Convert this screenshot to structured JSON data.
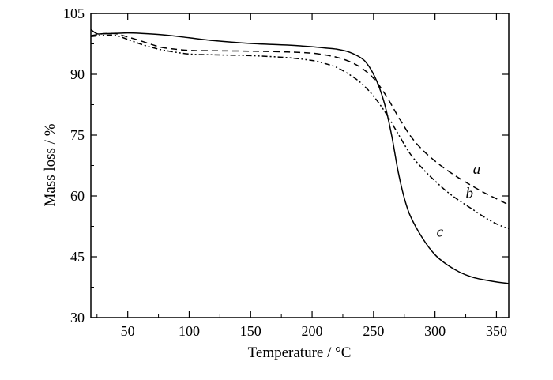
{
  "chart_data": {
    "type": "line",
    "title": "",
    "xlabel": "Temperature / °C",
    "ylabel": "Mass loss / %",
    "xlim": [
      20,
      360
    ],
    "ylim": [
      30,
      105
    ],
    "x_ticks": [
      50,
      100,
      150,
      200,
      250,
      300,
      350
    ],
    "y_ticks": [
      30,
      45,
      60,
      75,
      90,
      105
    ],
    "x_tick_labels": [
      "50",
      "100",
      "150",
      "200",
      "250",
      "300",
      "350"
    ],
    "y_tick_labels": [
      "30",
      "45",
      "60",
      "75",
      "90",
      "105"
    ],
    "grid": false,
    "legend": "none",
    "series": [
      {
        "name": "a",
        "style": "dashed",
        "x": [
          20,
          30,
          40,
          50,
          60,
          70,
          80,
          100,
          120,
          150,
          180,
          200,
          210,
          220,
          230,
          240,
          250,
          260,
          270,
          280,
          290,
          300,
          310,
          320,
          330,
          340,
          350,
          360
        ],
        "y": [
          99.5,
          100.0,
          100.0,
          99.2,
          98.3,
          97.3,
          96.5,
          95.9,
          95.8,
          95.7,
          95.5,
          95.2,
          94.8,
          94.2,
          93.2,
          91.6,
          89.0,
          84.8,
          79.6,
          74.8,
          71.3,
          68.6,
          66.3,
          64.3,
          62.5,
          60.8,
          59.3,
          57.8
        ]
      },
      {
        "name": "b",
        "style": "dash-dot-dot",
        "x": [
          20,
          30,
          40,
          50,
          60,
          70,
          80,
          100,
          120,
          150,
          180,
          200,
          210,
          220,
          230,
          240,
          250,
          260,
          270,
          280,
          290,
          300,
          310,
          320,
          330,
          340,
          350,
          360
        ],
        "y": [
          99.3,
          99.6,
          99.6,
          98.6,
          97.5,
          96.6,
          95.9,
          95.0,
          94.8,
          94.6,
          94.1,
          93.4,
          92.7,
          91.7,
          90.0,
          87.8,
          84.6,
          80.4,
          75.3,
          70.3,
          66.7,
          63.7,
          61.0,
          58.8,
          56.8,
          54.8,
          53.1,
          51.9
        ]
      },
      {
        "name": "c",
        "style": "solid",
        "x": [
          20,
          25,
          30,
          40,
          50,
          60,
          80,
          100,
          120,
          150,
          180,
          200,
          210,
          220,
          230,
          240,
          245,
          250,
          255,
          260,
          265,
          270,
          275,
          280,
          290,
          300,
          310,
          320,
          330,
          340,
          350,
          360
        ],
        "y": [
          101.0,
          100.0,
          100.0,
          100.1,
          100.2,
          100.1,
          99.7,
          99.0,
          98.3,
          97.6,
          97.2,
          96.8,
          96.5,
          96.2,
          95.5,
          94.0,
          92.5,
          90.0,
          86.5,
          81.5,
          74.5,
          66.0,
          59.5,
          55.0,
          49.5,
          45.5,
          43.0,
          41.2,
          40.0,
          39.3,
          38.8,
          38.4
        ]
      }
    ],
    "annotations": [
      {
        "text": "a",
        "x": 334,
        "y": 65.5
      },
      {
        "text": "b",
        "x": 328,
        "y": 59.5
      },
      {
        "text": "c",
        "x": 304,
        "y": 50.0
      }
    ]
  }
}
